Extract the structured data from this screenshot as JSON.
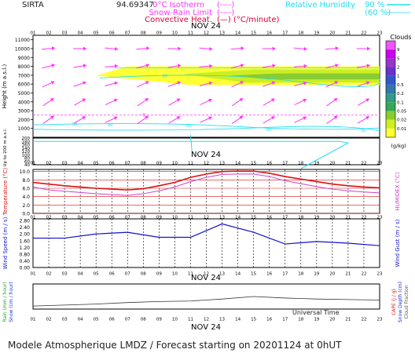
{
  "header": {
    "station": "SIRTA",
    "coords": "94.69347",
    "legend_left": [
      {
        "label": "0°C Isotherm",
        "symbol": "(----)",
        "color": "#ff33ff"
      },
      {
        "label": "Snow-Rain Limit",
        "symbol": "(----)",
        "color": "#ff33ff"
      },
      {
        "label": "Convective Heat.",
        "symbol": "(—) (°C/minute)",
        "color": "#dd0033"
      }
    ],
    "legend_right": {
      "label": "Relative Humidity",
      "v1": "90 %",
      "v2": "(60 %)",
      "color": "#22ddee"
    }
  },
  "hours": [
    "01",
    "02",
    "03",
    "04",
    "05",
    "06",
    "07",
    "08",
    "09",
    "10",
    "11",
    "12",
    "13",
    "14",
    "15",
    "16",
    "17",
    "18",
    "19",
    "20",
    "21",
    "22",
    "23"
  ],
  "date_label": "NOV 24",
  "footer": {
    "universal_time": "Universal Time",
    "caption": "Modele Atmospherique LMDZ / Forecast starting on 20201124 at 0hUT"
  },
  "colors": {
    "cloud_scale": [
      "#ffff33",
      "#ccee22",
      "#88cc33",
      "#33aa55",
      "#339988",
      "#3377aa",
      "#3355cc",
      "#6633cc",
      "#9933cc",
      "#cc00ee",
      "#ee55ff"
    ],
    "temperature": "#dd1111",
    "humidex": "#cc44cc",
    "wind": "#1111cc",
    "rain": "#333333",
    "rh": "#22ddee",
    "wind_arrow": "#ff33ff"
  },
  "chart_data": [
    {
      "type": "heatmap",
      "title": "",
      "ylabel": "Height (m a.s.l.)",
      "ytick_labels": [
        "1000",
        "2000",
        "3000",
        "4000",
        "5000",
        "6000",
        "7000",
        "8000",
        "9000",
        "10000",
        "11000"
      ],
      "ylim": [
        0,
        11500
      ],
      "cloud_colorbar": {
        "title": "Clouds",
        "unit": "(g/kg)",
        "tick_labels": [
          "9",
          "5",
          "2",
          "1",
          "0.5",
          "0.2",
          "0.1",
          "0.05",
          "0.02",
          "0.01"
        ]
      },
      "cloud_layer": {
        "base": 5900,
        "top": 8000,
        "start_hour": 5,
        "end_hour": 23
      },
      "isotherm_0c": {
        "height": 2500,
        "label": "0"
      },
      "rh_labels": [
        "90",
        "90",
        "90",
        "90",
        "90",
        "90"
      ],
      "wind_arrows_heights": [
        10000,
        8000,
        6000,
        4000,
        2000
      ]
    },
    {
      "type": "line",
      "title": "",
      "ylabel": "Up to 200 m a.s.l.",
      "ytick_labels": [
        "40",
        "60",
        "80",
        "100",
        "120",
        "140",
        "160",
        "180",
        "200"
      ],
      "ylim": [
        40,
        200
      ],
      "rh_line_height": 180
    },
    {
      "type": "line",
      "title": "",
      "ylabel": "Temperature (°C)",
      "ylabel_right": "HUMIDEX (°C)",
      "ytick_labels": [
        "0.0",
        "2.0",
        "4.0",
        "6.0",
        "8.0",
        "10.0"
      ],
      "ylim": [
        0,
        10.5
      ],
      "x": [
        1,
        2,
        3,
        4,
        5,
        6,
        7,
        8,
        9,
        10,
        11,
        12,
        13,
        14,
        15,
        16,
        17,
        18,
        19,
        20,
        21,
        22,
        23
      ],
      "series": [
        {
          "name": "Temperature",
          "values": [
            7.4,
            7.0,
            6.6,
            6.3,
            6.0,
            5.8,
            5.6,
            5.9,
            6.6,
            7.4,
            8.6,
            9.4,
            10.0,
            10.1,
            10.1,
            9.6,
            8.8,
            8.2,
            7.6,
            7.0,
            6.6,
            6.3,
            6.1
          ]
        },
        {
          "name": "Humidex",
          "values": [
            6.3,
            5.6,
            5.3,
            5.0,
            4.7,
            4.5,
            4.3,
            4.7,
            5.4,
            6.3,
            7.6,
            8.6,
            9.3,
            9.4,
            9.4,
            8.8,
            7.8,
            7.1,
            6.4,
            5.8,
            5.4,
            5.1,
            4.9
          ]
        }
      ]
    },
    {
      "type": "line",
      "title": "",
      "ylabel": "Wind Speed (m / s)",
      "ylabel_right": "Wind Gust (m / s)",
      "ytick_labels": [
        "0.00",
        "0.40",
        "0.80",
        "1.20",
        "1.60",
        "2.00",
        "2.40",
        "2.80"
      ],
      "ylim": [
        0,
        2.9
      ],
      "x": [
        1,
        3,
        5,
        7,
        9,
        11,
        13,
        15,
        17,
        19,
        21,
        23
      ],
      "series": [
        {
          "name": "Wind speed",
          "values": [
            1.75,
            1.75,
            2.0,
            2.1,
            1.8,
            1.8,
            2.6,
            2.1,
            1.4,
            1.55,
            1.45,
            1.3
          ]
        }
      ]
    },
    {
      "type": "line",
      "title": "",
      "ylabel": "Rain (mm / hour)",
      "ylabel2": "Snow (cm / hour)",
      "ylabel_right": "CAPE (J / g)",
      "ylabel_right2": "Snow Depth (cm)",
      "ylabel_right3": "Cloud Fraction",
      "ytick_labels": [],
      "ylim": [
        0,
        1
      ],
      "x": [
        1,
        3,
        5,
        7,
        9,
        11,
        13,
        15,
        17,
        19,
        21,
        23
      ],
      "series": [
        {
          "name": "Cloud fraction",
          "values": [
            0.12,
            0.16,
            0.2,
            0.26,
            0.3,
            0.32,
            0.4,
            0.5,
            0.44,
            0.4,
            0.38,
            0.36
          ]
        }
      ]
    }
  ]
}
